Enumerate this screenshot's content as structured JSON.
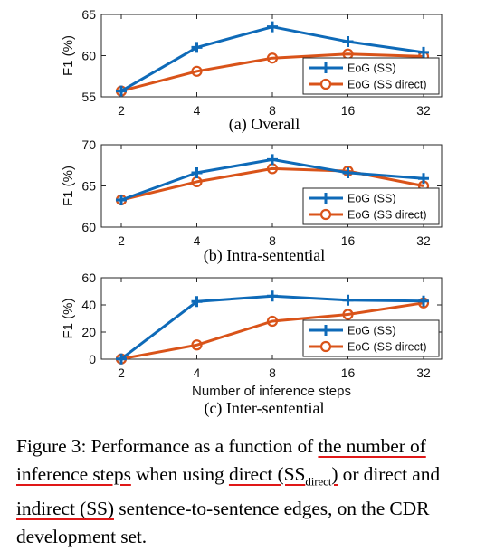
{
  "chart_data": [
    {
      "type": "line",
      "subtitle": "(a) Overall",
      "ylabel": "F1 (%)",
      "xlabel": "",
      "x": [
        2,
        4,
        8,
        16,
        32
      ],
      "x_scale": "log2",
      "ylim": [
        55,
        65
      ],
      "yticks": [
        55,
        60,
        65
      ],
      "grid": false,
      "legend_position": "bottom-right",
      "series": [
        {
          "name": "EoG (SS)",
          "color": "#0e6ab8",
          "marker": "plus",
          "values": [
            55.7,
            61.0,
            63.5,
            61.7,
            60.4
          ]
        },
        {
          "name": "EoG (SS direct)",
          "color": "#d95319",
          "marker": "circle",
          "values": [
            55.7,
            58.1,
            59.7,
            60.2,
            59.9
          ]
        }
      ]
    },
    {
      "type": "line",
      "subtitle": "(b) Intra-sentential",
      "ylabel": "F1 (%)",
      "xlabel": "",
      "x": [
        2,
        4,
        8,
        16,
        32
      ],
      "x_scale": "log2",
      "ylim": [
        60,
        70
      ],
      "yticks": [
        60,
        65,
        70
      ],
      "grid": false,
      "legend_position": "bottom-right",
      "series": [
        {
          "name": "EoG (SS)",
          "color": "#0e6ab8",
          "marker": "plus",
          "values": [
            63.3,
            66.6,
            68.2,
            66.6,
            65.9
          ]
        },
        {
          "name": "EoG (SS direct)",
          "color": "#d95319",
          "marker": "circle",
          "values": [
            63.3,
            65.5,
            67.1,
            66.8,
            65.0
          ]
        }
      ]
    },
    {
      "type": "line",
      "subtitle": "(c) Inter-sentential",
      "ylabel": "F1 (%)",
      "xlabel": "Number of inference steps",
      "x": [
        2,
        4,
        8,
        16,
        32
      ],
      "x_scale": "log2",
      "ylim": [
        0,
        60
      ],
      "yticks": [
        0,
        20,
        40,
        60
      ],
      "grid": false,
      "legend_position": "bottom-right",
      "series": [
        {
          "name": "EoG (SS)",
          "color": "#0e6ab8",
          "marker": "plus",
          "values": [
            0.2,
            42.5,
            46.5,
            43.5,
            42.8
          ]
        },
        {
          "name": "EoG (SS direct)",
          "color": "#d95319",
          "marker": "circle",
          "values": [
            0.2,
            10.5,
            28.0,
            33.0,
            41.5
          ]
        }
      ]
    }
  ],
  "caption": {
    "prefix": "Figure 3: Performance as a function of ",
    "highlight1": "the number of inference steps",
    "mid1": " when using ",
    "highlight2_main": "direct (SS",
    "highlight2_sub": "direct",
    "highlight2_end": ")",
    "mid2": " or direct and ",
    "highlight3": "indirect (SS)",
    "suffix": " sentence-to-sentence edges, on the CDR development set."
  }
}
